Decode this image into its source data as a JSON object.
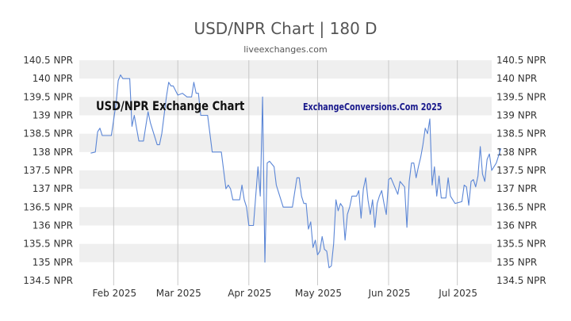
{
  "title": "USD/NPR Chart | 180 D",
  "subtitle": "liveexchanges.com",
  "watermarks": {
    "left": "USD/NPR Exchange Chart",
    "right": "ExchangeConversions.Com 2025"
  },
  "colors": {
    "line": "#5b86d6",
    "band": "#efefef",
    "axis_text": "#333333",
    "vertical_grid": "#c8c8c8"
  },
  "chart_data": {
    "type": "line",
    "title": "USD/NPR Chart | 180 D",
    "ylim": [
      134.5,
      140.5
    ],
    "y_ticks": [
      {
        "value": 140.5,
        "label": "140.5 NPR"
      },
      {
        "value": 140,
        "label": "140 NPR"
      },
      {
        "value": 139.5,
        "label": "139.5 NPR"
      },
      {
        "value": 139,
        "label": "139 NPR"
      },
      {
        "value": 138.5,
        "label": "138.5 NPR"
      },
      {
        "value": 138,
        "label": "138 NPR"
      },
      {
        "value": 137.5,
        "label": "137.5 NPR"
      },
      {
        "value": 137,
        "label": "137 NPR"
      },
      {
        "value": 136.5,
        "label": "136.5 NPR"
      },
      {
        "value": 136,
        "label": "136 NPR"
      },
      {
        "value": 135.5,
        "label": "135.5 NPR"
      },
      {
        "value": 135,
        "label": "135 NPR"
      },
      {
        "value": 134.5,
        "label": "134.5 NPR"
      }
    ],
    "x_range": [
      "2025-01-17",
      "2025-07-16"
    ],
    "x_ticks": [
      {
        "date": "2025-02-01",
        "label": "Feb 2025"
      },
      {
        "date": "2025-03-01",
        "label": "Mar 2025"
      },
      {
        "date": "2025-04-01",
        "label": "Apr 2025"
      },
      {
        "date": "2025-05-01",
        "label": "May 2025"
      },
      {
        "date": "2025-06-01",
        "label": "Jun 2025"
      },
      {
        "date": "2025-07-01",
        "label": "Jul 2025"
      }
    ],
    "grid": {
      "horizontal_bands": true,
      "vertical_month_lines": true
    },
    "series": [
      {
        "values": [
          [
            "2025-01-22",
            137.97
          ],
          [
            "2025-01-24",
            138.0
          ],
          [
            "2025-01-25",
            138.55
          ],
          [
            "2025-01-26",
            138.65
          ],
          [
            "2025-01-27",
            138.45
          ],
          [
            "2025-01-31",
            138.45
          ],
          [
            "2025-02-02",
            139.3
          ],
          [
            "2025-02-03",
            139.95
          ],
          [
            "2025-02-04",
            140.1
          ],
          [
            "2025-02-05",
            140.0
          ],
          [
            "2025-02-08",
            140.0
          ],
          [
            "2025-02-09",
            138.7
          ],
          [
            "2025-02-10",
            139.0
          ],
          [
            "2025-02-12",
            138.3
          ],
          [
            "2025-02-14",
            138.3
          ],
          [
            "2025-02-16",
            139.1
          ],
          [
            "2025-02-17",
            138.8
          ],
          [
            "2025-02-20",
            138.2
          ],
          [
            "2025-02-21",
            138.2
          ],
          [
            "2025-02-22",
            138.5
          ],
          [
            "2025-02-23",
            139.0
          ],
          [
            "2025-02-24",
            139.5
          ],
          [
            "2025-02-25",
            139.9
          ],
          [
            "2025-02-26",
            139.8
          ],
          [
            "2025-02-27",
            139.8
          ],
          [
            "2025-03-01",
            139.55
          ],
          [
            "2025-03-03",
            139.6
          ],
          [
            "2025-03-05",
            139.5
          ],
          [
            "2025-03-07",
            139.5
          ],
          [
            "2025-03-08",
            139.9
          ],
          [
            "2025-03-09",
            139.6
          ],
          [
            "2025-03-10",
            139.6
          ],
          [
            "2025-03-11",
            139.0
          ],
          [
            "2025-03-14",
            139.0
          ],
          [
            "2025-03-16",
            138.0
          ],
          [
            "2025-03-20",
            138.0
          ],
          [
            "2025-03-22",
            137.0
          ],
          [
            "2025-03-23",
            137.1
          ],
          [
            "2025-03-24",
            137.0
          ],
          [
            "2025-03-25",
            136.7
          ],
          [
            "2025-03-28",
            136.7
          ],
          [
            "2025-03-29",
            137.1
          ],
          [
            "2025-03-30",
            136.7
          ],
          [
            "2025-03-31",
            136.5
          ],
          [
            "2025-04-01",
            136.0
          ],
          [
            "2025-04-03",
            136.0
          ],
          [
            "2025-04-05",
            137.6
          ],
          [
            "2025-04-06",
            136.8
          ],
          [
            "2025-04-07",
            139.5
          ],
          [
            "2025-04-08",
            135.0
          ],
          [
            "2025-04-09",
            137.7
          ],
          [
            "2025-04-10",
            137.75
          ],
          [
            "2025-04-12",
            137.6
          ],
          [
            "2025-04-13",
            137.1
          ],
          [
            "2025-04-14",
            136.9
          ],
          [
            "2025-04-16",
            136.5
          ],
          [
            "2025-04-20",
            136.5
          ],
          [
            "2025-04-22",
            137.3
          ],
          [
            "2025-04-23",
            137.3
          ],
          [
            "2025-04-24",
            136.8
          ],
          [
            "2025-04-25",
            136.6
          ],
          [
            "2025-04-26",
            136.6
          ],
          [
            "2025-04-27",
            135.9
          ],
          [
            "2025-04-28",
            136.1
          ],
          [
            "2025-04-29",
            135.4
          ],
          [
            "2025-04-30",
            135.6
          ],
          [
            "2025-05-01",
            135.2
          ],
          [
            "2025-05-02",
            135.3
          ],
          [
            "2025-05-03",
            135.7
          ],
          [
            "2025-05-04",
            135.35
          ],
          [
            "2025-05-05",
            135.3
          ],
          [
            "2025-05-06",
            134.85
          ],
          [
            "2025-05-07",
            134.9
          ],
          [
            "2025-05-08",
            135.5
          ],
          [
            "2025-05-09",
            136.7
          ],
          [
            "2025-05-10",
            136.4
          ],
          [
            "2025-05-11",
            136.6
          ],
          [
            "2025-05-12",
            136.5
          ],
          [
            "2025-05-13",
            135.6
          ],
          [
            "2025-05-14",
            136.3
          ],
          [
            "2025-05-15",
            136.5
          ],
          [
            "2025-05-16",
            136.8
          ],
          [
            "2025-05-18",
            136.8
          ],
          [
            "2025-05-19",
            136.95
          ],
          [
            "2025-05-20",
            136.2
          ],
          [
            "2025-05-21",
            137.0
          ],
          [
            "2025-05-22",
            137.3
          ],
          [
            "2025-05-23",
            136.7
          ],
          [
            "2025-05-24",
            136.3
          ],
          [
            "2025-05-25",
            136.7
          ],
          [
            "2025-05-26",
            135.95
          ],
          [
            "2025-05-27",
            136.6
          ],
          [
            "2025-05-28",
            136.8
          ],
          [
            "2025-05-29",
            136.95
          ],
          [
            "2025-05-30",
            136.6
          ],
          [
            "2025-05-31",
            136.3
          ],
          [
            "2025-06-01",
            137.25
          ],
          [
            "2025-06-02",
            137.3
          ],
          [
            "2025-06-04",
            137.0
          ],
          [
            "2025-06-05",
            136.85
          ],
          [
            "2025-06-06",
            137.2
          ],
          [
            "2025-06-08",
            137.05
          ],
          [
            "2025-06-09",
            135.95
          ],
          [
            "2025-06-10",
            137.2
          ],
          [
            "2025-06-11",
            137.7
          ],
          [
            "2025-06-12",
            137.7
          ],
          [
            "2025-06-13",
            137.3
          ],
          [
            "2025-06-14",
            137.6
          ],
          [
            "2025-06-15",
            137.85
          ],
          [
            "2025-06-16",
            138.2
          ],
          [
            "2025-06-17",
            138.65
          ],
          [
            "2025-06-18",
            138.5
          ],
          [
            "2025-06-19",
            138.9
          ],
          [
            "2025-06-20",
            137.1
          ],
          [
            "2025-06-21",
            137.6
          ],
          [
            "2025-06-22",
            136.8
          ],
          [
            "2025-06-23",
            137.35
          ],
          [
            "2025-06-24",
            136.75
          ],
          [
            "2025-06-26",
            136.75
          ],
          [
            "2025-06-27",
            137.3
          ],
          [
            "2025-06-28",
            136.8
          ],
          [
            "2025-06-30",
            136.6
          ],
          [
            "2025-07-03",
            136.65
          ],
          [
            "2025-07-04",
            137.1
          ],
          [
            "2025-07-05",
            137.05
          ],
          [
            "2025-07-06",
            136.55
          ],
          [
            "2025-07-07",
            137.2
          ],
          [
            "2025-07-08",
            137.25
          ],
          [
            "2025-07-09",
            137.05
          ],
          [
            "2025-07-10",
            137.35
          ],
          [
            "2025-07-11",
            138.15
          ],
          [
            "2025-07-12",
            137.4
          ],
          [
            "2025-07-13",
            137.2
          ],
          [
            "2025-07-14",
            137.8
          ],
          [
            "2025-07-15",
            137.95
          ],
          [
            "2025-07-16",
            137.5
          ],
          [
            "2025-07-18",
            137.7
          ],
          [
            "2025-07-20",
            138.1
          ]
        ]
      }
    ]
  }
}
